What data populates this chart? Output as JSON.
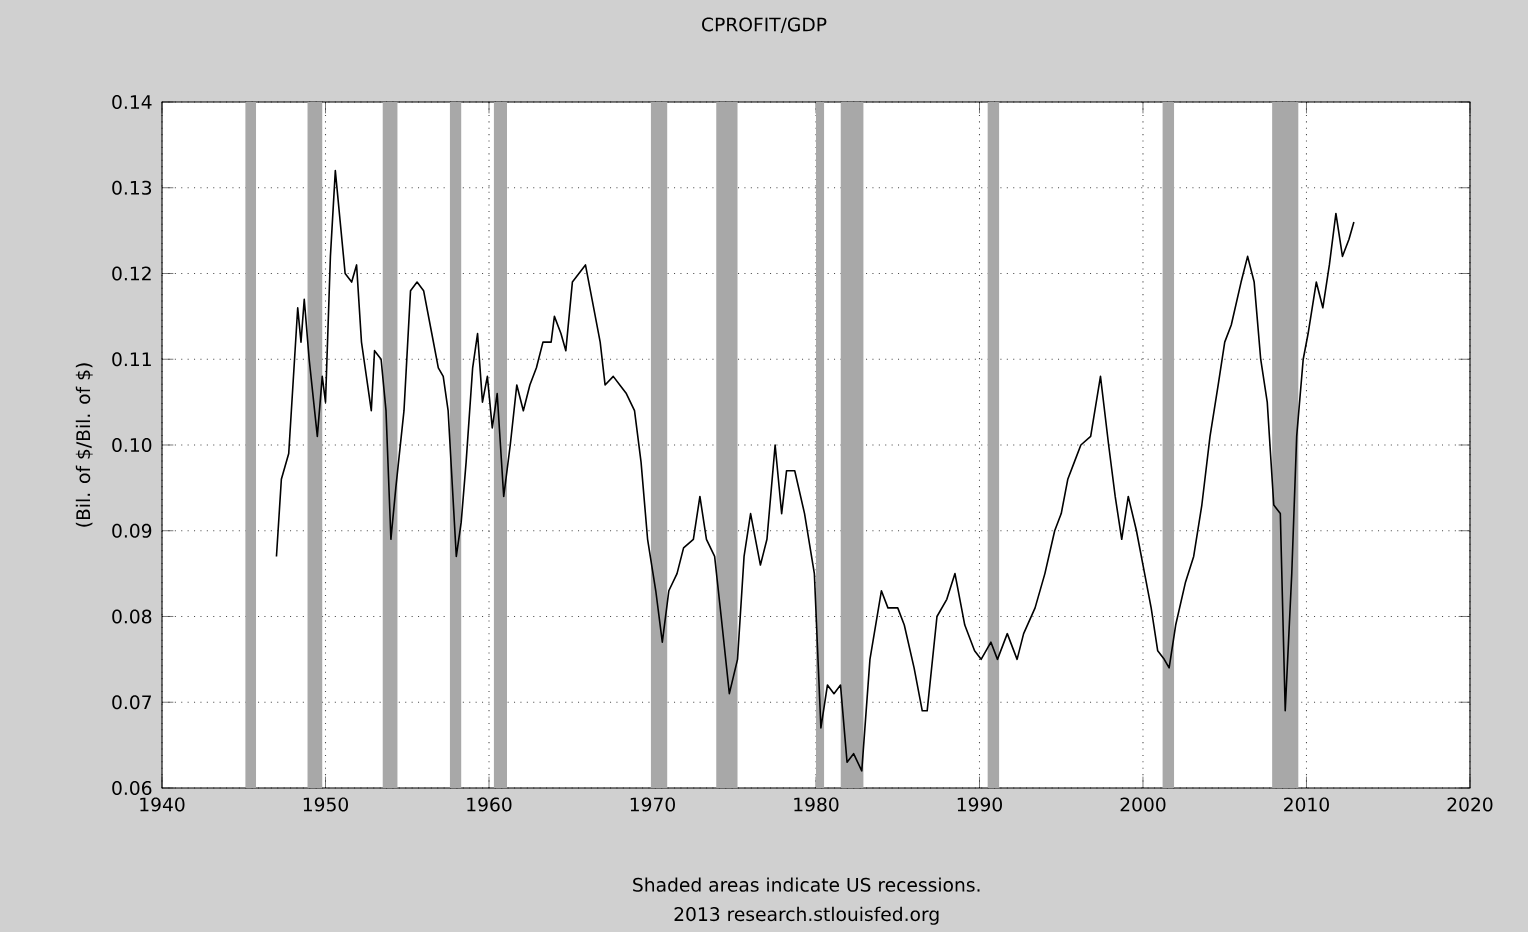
{
  "chart_data": {
    "type": "line",
    "title": "CPROFIT/GDP",
    "ylabel": "(Bil. of $/Bil. of $)",
    "annotations": [
      "Shaded areas indicate US recessions.",
      "2013 research.stlouisfed.org"
    ],
    "xlim": [
      1940,
      2020
    ],
    "xticks": [
      1940,
      1950,
      1960,
      1970,
      1980,
      1990,
      2000,
      2010,
      2020
    ],
    "ylim": [
      0.06,
      0.14
    ],
    "yticks": [
      {
        "value": 0.06,
        "label": "0.06"
      },
      {
        "value": 0.07,
        "label": "0.07"
      },
      {
        "value": 0.08,
        "label": "0.08"
      },
      {
        "value": 0.09,
        "label": "0.09"
      },
      {
        "value": 0.1,
        "label": "0.10"
      },
      {
        "value": 0.11,
        "label": "0.11"
      },
      {
        "value": 0.12,
        "label": "0.12"
      },
      {
        "value": 0.13,
        "label": "0.13"
      },
      {
        "value": 0.14,
        "label": "0.14"
      }
    ],
    "grid": true,
    "bands": [
      {
        "axis": "x",
        "from": 1945.1,
        "to": 1945.75,
        "color": "#a8a8a8"
      },
      {
        "axis": "x",
        "from": 1948.9,
        "to": 1949.8,
        "color": "#a8a8a8"
      },
      {
        "axis": "x",
        "from": 1953.5,
        "to": 1954.4,
        "color": "#a8a8a8"
      },
      {
        "axis": "x",
        "from": 1957.6,
        "to": 1958.3,
        "color": "#a8a8a8"
      },
      {
        "axis": "x",
        "from": 1960.3,
        "to": 1961.1,
        "color": "#a8a8a8"
      },
      {
        "axis": "x",
        "from": 1969.9,
        "to": 1970.9,
        "color": "#a8a8a8"
      },
      {
        "axis": "x",
        "from": 1973.9,
        "to": 1975.2,
        "color": "#a8a8a8"
      },
      {
        "axis": "x",
        "from": 1980.0,
        "to": 1980.5,
        "color": "#a8a8a8"
      },
      {
        "axis": "x",
        "from": 1981.5,
        "to": 1982.9,
        "color": "#a8a8a8"
      },
      {
        "axis": "x",
        "from": 1990.5,
        "to": 1991.2,
        "color": "#a8a8a8"
      },
      {
        "axis": "x",
        "from": 2001.2,
        "to": 2001.9,
        "color": "#a8a8a8"
      },
      {
        "axis": "x",
        "from": 2007.9,
        "to": 2009.5,
        "color": "#a8a8a8"
      }
    ],
    "series": [
      {
        "color": "#000000",
        "x": [
          1947.0,
          1947.3,
          1947.75,
          1948.3,
          1948.5,
          1948.7,
          1949.0,
          1949.5,
          1949.8,
          1950.0,
          1950.3,
          1950.6,
          1950.9,
          1951.2,
          1951.6,
          1951.9,
          1952.2,
          1952.5,
          1952.8,
          1953.0,
          1953.4,
          1953.7,
          1954.0,
          1954.3,
          1954.8,
          1955.2,
          1955.6,
          1956.0,
          1956.5,
          1956.9,
          1957.2,
          1957.5,
          1958.0,
          1958.3,
          1958.6,
          1959.0,
          1959.3,
          1959.6,
          1959.9,
          1960.2,
          1960.5,
          1960.9,
          1961.3,
          1961.7,
          1962.1,
          1962.5,
          1962.9,
          1963.3,
          1963.8,
          1964.0,
          1964.4,
          1964.7,
          1965.1,
          1965.5,
          1965.9,
          1966.3,
          1966.8,
          1967.1,
          1967.6,
          1968.0,
          1968.4,
          1968.9,
          1969.3,
          1969.7,
          1970.2,
          1970.6,
          1971.0,
          1971.5,
          1971.9,
          1972.5,
          1972.9,
          1973.3,
          1973.8,
          1974.2,
          1974.7,
          1975.2,
          1975.6,
          1976.0,
          1976.6,
          1977.0,
          1977.5,
          1977.9,
          1978.2,
          1978.7,
          1979.3,
          1979.9,
          1980.3,
          1980.7,
          1981.1,
          1981.5,
          1981.9,
          1982.3,
          1982.8,
          1983.3,
          1984.0,
          1984.4,
          1985.0,
          1985.4,
          1986.0,
          1986.5,
          1986.8,
          1987.4,
          1988.0,
          1988.5,
          1989.1,
          1989.7,
          1990.1,
          1990.7,
          1991.1,
          1991.7,
          1992.3,
          1992.7,
          1993.4,
          1994.0,
          1994.6,
          1995.0,
          1995.4,
          1995.8,
          1996.2,
          1996.8,
          1997.4,
          1997.9,
          1998.3,
          1998.7,
          1999.1,
          1999.6,
          2000.1,
          2000.5,
          2000.9,
          2001.3,
          2001.6,
          2002.0,
          2002.6,
          2003.1,
          2003.6,
          2004.1,
          2004.6,
          2005.0,
          2005.4,
          2006.0,
          2006.4,
          2006.8,
          2007.2,
          2007.6,
          2008.0,
          2008.4,
          2008.7,
          2009.1,
          2009.4,
          2009.8,
          2010.1,
          2010.6,
          2011.0,
          2011.4,
          2011.8,
          2012.2,
          2012.6,
          2012.9
        ],
        "values": [
          0.087,
          0.096,
          0.099,
          0.116,
          0.112,
          0.117,
          0.11,
          0.101,
          0.108,
          0.105,
          0.122,
          0.132,
          0.126,
          0.12,
          0.119,
          0.121,
          0.112,
          0.108,
          0.104,
          0.111,
          0.11,
          0.104,
          0.089,
          0.095,
          0.104,
          0.118,
          0.119,
          0.118,
          0.113,
          0.109,
          0.108,
          0.104,
          0.087,
          0.091,
          0.098,
          0.109,
          0.113,
          0.105,
          0.108,
          0.102,
          0.106,
          0.094,
          0.1,
          0.107,
          0.104,
          0.107,
          0.109,
          0.112,
          0.112,
          0.115,
          0.113,
          0.111,
          0.119,
          0.12,
          0.121,
          0.117,
          0.112,
          0.107,
          0.108,
          0.107,
          0.106,
          0.104,
          0.098,
          0.089,
          0.083,
          0.077,
          0.083,
          0.085,
          0.088,
          0.089,
          0.094,
          0.089,
          0.087,
          0.08,
          0.071,
          0.075,
          0.087,
          0.092,
          0.086,
          0.089,
          0.1,
          0.092,
          0.097,
          0.097,
          0.092,
          0.085,
          0.067,
          0.072,
          0.071,
          0.072,
          0.063,
          0.064,
          0.062,
          0.075,
          0.083,
          0.081,
          0.081,
          0.079,
          0.074,
          0.069,
          0.069,
          0.08,
          0.082,
          0.085,
          0.079,
          0.076,
          0.075,
          0.077,
          0.075,
          0.078,
          0.075,
          0.078,
          0.081,
          0.085,
          0.09,
          0.092,
          0.096,
          0.098,
          0.1,
          0.101,
          0.108,
          0.1,
          0.094,
          0.089,
          0.094,
          0.09,
          0.085,
          0.081,
          0.076,
          0.075,
          0.074,
          0.079,
          0.084,
          0.087,
          0.093,
          0.101,
          0.107,
          0.112,
          0.114,
          0.119,
          0.122,
          0.119,
          0.11,
          0.105,
          0.093,
          0.092,
          0.069,
          0.085,
          0.101,
          0.11,
          0.113,
          0.119,
          0.116,
          0.121,
          0.127,
          0.122,
          0.124,
          0.126
        ]
      }
    ]
  }
}
